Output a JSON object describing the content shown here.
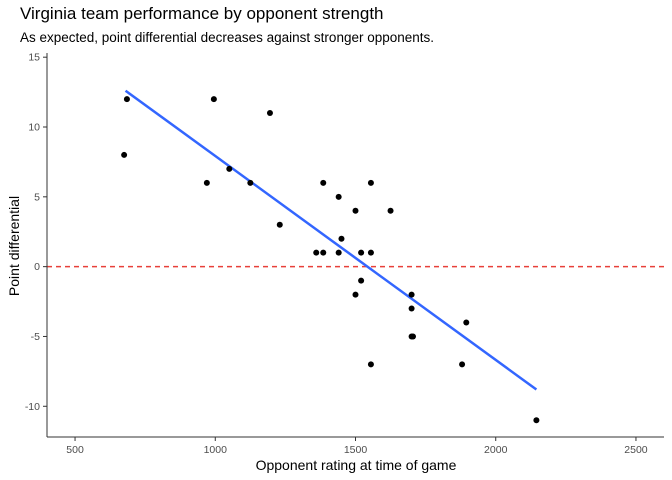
{
  "chart_data": {
    "type": "scatter",
    "title": "Virginia team performance by opponent strength",
    "subtitle": "As expected, point differential decreases against stronger opponents.",
    "xlabel": "Opponent rating at time of game",
    "ylabel": "Point differential",
    "xlim": [
      400,
      2600
    ],
    "ylim": [
      -12.2,
      15.3
    ],
    "xticks": [
      500,
      1000,
      1500,
      2000,
      2500
    ],
    "yticks": [
      -10,
      -5,
      0,
      5,
      10,
      15
    ],
    "grid": false,
    "points": [
      {
        "x": 685,
        "y": 12
      },
      {
        "x": 675,
        "y": 8
      },
      {
        "x": 995,
        "y": 12
      },
      {
        "x": 970,
        "y": 6
      },
      {
        "x": 1050,
        "y": 7
      },
      {
        "x": 1125,
        "y": 6
      },
      {
        "x": 1195,
        "y": 11
      },
      {
        "x": 1230,
        "y": 3
      },
      {
        "x": 1360,
        "y": 1
      },
      {
        "x": 1385,
        "y": 1
      },
      {
        "x": 1385,
        "y": 6
      },
      {
        "x": 1440,
        "y": 5
      },
      {
        "x": 1440,
        "y": 1
      },
      {
        "x": 1450,
        "y": 2
      },
      {
        "x": 1500,
        "y": 4
      },
      {
        "x": 1500,
        "y": -2
      },
      {
        "x": 1520,
        "y": 1
      },
      {
        "x": 1520,
        "y": -1
      },
      {
        "x": 1555,
        "y": 6
      },
      {
        "x": 1555,
        "y": 1
      },
      {
        "x": 1555,
        "y": -7
      },
      {
        "x": 1625,
        "y": 4
      },
      {
        "x": 1700,
        "y": -2
      },
      {
        "x": 1700,
        "y": -3
      },
      {
        "x": 1700,
        "y": -5
      },
      {
        "x": 1705,
        "y": -5
      },
      {
        "x": 1880,
        "y": -7
      },
      {
        "x": 1895,
        "y": -4
      },
      {
        "x": 2145,
        "y": -11
      }
    ],
    "trend_line": {
      "x": [
        680,
        2145
      ],
      "y": [
        12.6,
        -8.8
      ]
    },
    "reference_line": {
      "y": 0
    },
    "colors": {
      "points": "#000000",
      "trend": "#3366ff",
      "reference": "#e8403a",
      "axis": "#333333",
      "tick_text": "#4d4d4d"
    }
  }
}
